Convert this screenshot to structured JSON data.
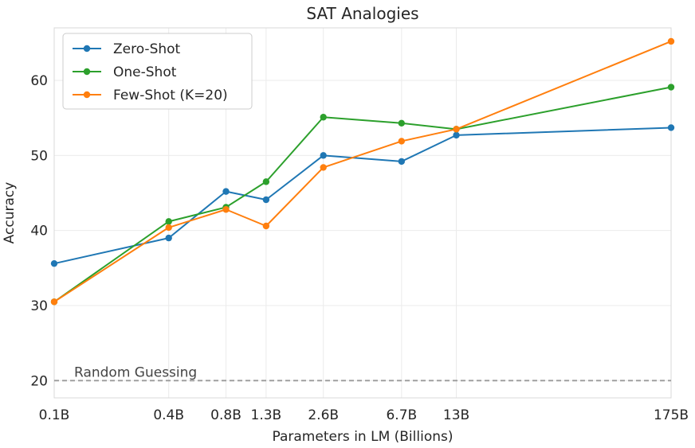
{
  "chart_data": {
    "type": "line",
    "title": "SAT Analogies",
    "xlabel": "Parameters in LM (Billions)",
    "ylabel": "Accuracy",
    "x_scale": "log",
    "x": [
      0.1,
      0.4,
      0.8,
      1.3,
      2.6,
      6.7,
      13,
      175
    ],
    "x_tick_labels": [
      "0.1B",
      "0.4B",
      "0.8B",
      "1.3B",
      "2.6B",
      "6.7B",
      "13B",
      "175B"
    ],
    "y_ticks": [
      20,
      30,
      40,
      50,
      60
    ],
    "ylim": [
      17.7,
      67
    ],
    "grid": true,
    "legend_position": "top-left",
    "series": [
      {
        "name": "Zero-Shot",
        "color": "#1f77b4",
        "values": [
          35.6,
          39.0,
          45.2,
          44.1,
          50.0,
          49.2,
          52.7,
          53.7
        ]
      },
      {
        "name": "One-Shot",
        "color": "#2ca02c",
        "values": [
          30.5,
          41.2,
          43.1,
          46.5,
          55.1,
          54.3,
          53.5,
          59.1
        ]
      },
      {
        "name": "Few-Shot (K=20)",
        "color": "#ff7f0e",
        "values": [
          30.5,
          40.4,
          42.8,
          40.6,
          48.4,
          51.9,
          53.5,
          65.2
        ]
      }
    ],
    "reference_line": {
      "label": "Random Guessing",
      "y": 20,
      "color": "#9a9a9a"
    }
  }
}
